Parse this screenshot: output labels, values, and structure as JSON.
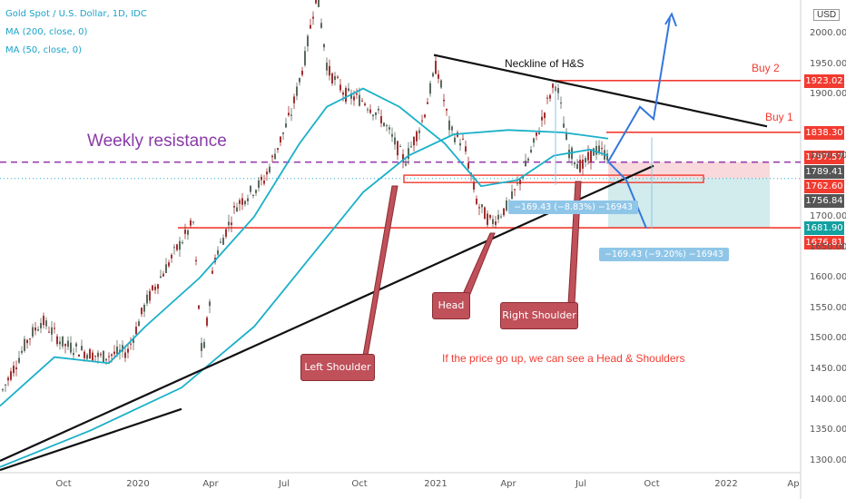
{
  "header": {
    "symbol": "Gold Spot / U.S. Dollar, 1D, IDC",
    "ma200": "MA (200, close, 0)",
    "ma50": "MA (50, close, 0)",
    "currency": "USD"
  },
  "colors": {
    "candle_up": "#5a6a5e",
    "candle_down": "#a03030",
    "ma200": "#1ab0c8",
    "ma50": "#1ab0c8",
    "resistance": "#9b3fb0",
    "red_line": "#f23b30",
    "tag_red": "#f23b30",
    "tag_dark": "#555555",
    "tag_teal": "#13a0a0",
    "arrow": "#3377dd"
  },
  "annotations": {
    "weekly_resistance": "Weekly resistance",
    "neckline": "Neckline of H&S",
    "buy1": "Buy 1",
    "buy2": "Buy 2",
    "left_shoulder": "Left Shoulder",
    "head": "Head",
    "right_shoulder": "Right Shoulder",
    "hypothesis": "If the price go up, we can see a Head & Shoulders",
    "measure1": "−169.43 (−8.83%) −16943",
    "measure2": "−169.43 (−9.20%) −16943"
  },
  "price_tags": [
    {
      "label": "1923.02",
      "value": 1923.02,
      "kind": "red"
    },
    {
      "label": "1838.30",
      "value": 1838.3,
      "kind": "red"
    },
    {
      "label": "1797.57",
      "value": 1797.57,
      "kind": "red"
    },
    {
      "label": "1789.41",
      "value": 1789.41,
      "kind": "dark"
    },
    {
      "label": "1762.60",
      "value": 1762.6,
      "kind": "red"
    },
    {
      "label": "1756.84",
      "value": 1756.84,
      "kind": "dark"
    },
    {
      "label": "1681.90",
      "value": 1681.9,
      "kind": "teal"
    },
    {
      "label": "1676.81",
      "value": 1676.81,
      "kind": "red"
    }
  ],
  "chart_data": {
    "type": "line",
    "title": "Gold Spot / U.S. Dollar, 1D, IDC",
    "ylim": [
      1290,
      2080
    ],
    "y_ticks": [
      "2000.00",
      "1950.00",
      "1900.00",
      "1800.00",
      "1700.00",
      "1650.00",
      "1600.00",
      "1550.00",
      "1500.00",
      "1450.00",
      "1400.00",
      "1350.00",
      "1300.00"
    ],
    "x_ticks": [
      "Oct",
      "2020",
      "Apr",
      "Jul",
      "Oct",
      "2021",
      "Apr",
      "Jul",
      "Oct",
      "2022",
      "Ap"
    ],
    "series": [
      {
        "name": "Gold Spot / U.S. Dollar",
        "x": [
          "2019-07",
          "2019-08",
          "2019-09",
          "2019-10",
          "2019-11",
          "2019-12",
          "2020-01",
          "2020-02",
          "2020-03",
          "2020-04",
          "2020-05",
          "2020-06",
          "2020-07",
          "2020-08",
          "2020-09",
          "2020-10",
          "2020-11",
          "2020-12",
          "2021-01",
          "2021-02",
          "2021-03",
          "2021-04",
          "2021-05",
          "2021-06",
          "2021-07",
          "2021-08"
        ],
        "values": [
          1410,
          1520,
          1490,
          1505,
          1465,
          1480,
          1560,
          1600,
          1500,
          1690,
          1720,
          1760,
          1950,
          2060,
          1900,
          1890,
          1800,
          1870,
          1860,
          1780,
          1690,
          1770,
          1900,
          1770,
          1810,
          1790
        ]
      },
      {
        "name": "MA (200, close, 0)",
        "x": [
          "2019-07",
          "2019-10",
          "2020-01",
          "2020-04",
          "2020-07",
          "2020-10",
          "2021-01",
          "2021-04",
          "2021-07",
          "2021-08"
        ],
        "values": [
          1300,
          1380,
          1450,
          1530,
          1640,
          1760,
          1830,
          1840,
          1830,
          1825
        ]
      },
      {
        "name": "MA (50, close, 0)",
        "x": [
          "2019-07",
          "2019-10",
          "2020-01",
          "2020-04",
          "2020-07",
          "2020-10",
          "2021-01",
          "2021-04",
          "2021-07",
          "2021-08"
        ],
        "values": [
          1390,
          1500,
          1480,
          1600,
          1740,
          1920,
          1880,
          1740,
          1800,
          1800
        ]
      }
    ],
    "levels": [
      {
        "value": 1923.02,
        "label": "Buy 2"
      },
      {
        "value": 1838.3,
        "label": "Buy 1"
      },
      {
        "value": 1789.41,
        "label": "Weekly resistance"
      },
      {
        "value": 1762.6
      },
      {
        "value": 1681.9
      }
    ],
    "grid": false,
    "legend": "top-left"
  }
}
